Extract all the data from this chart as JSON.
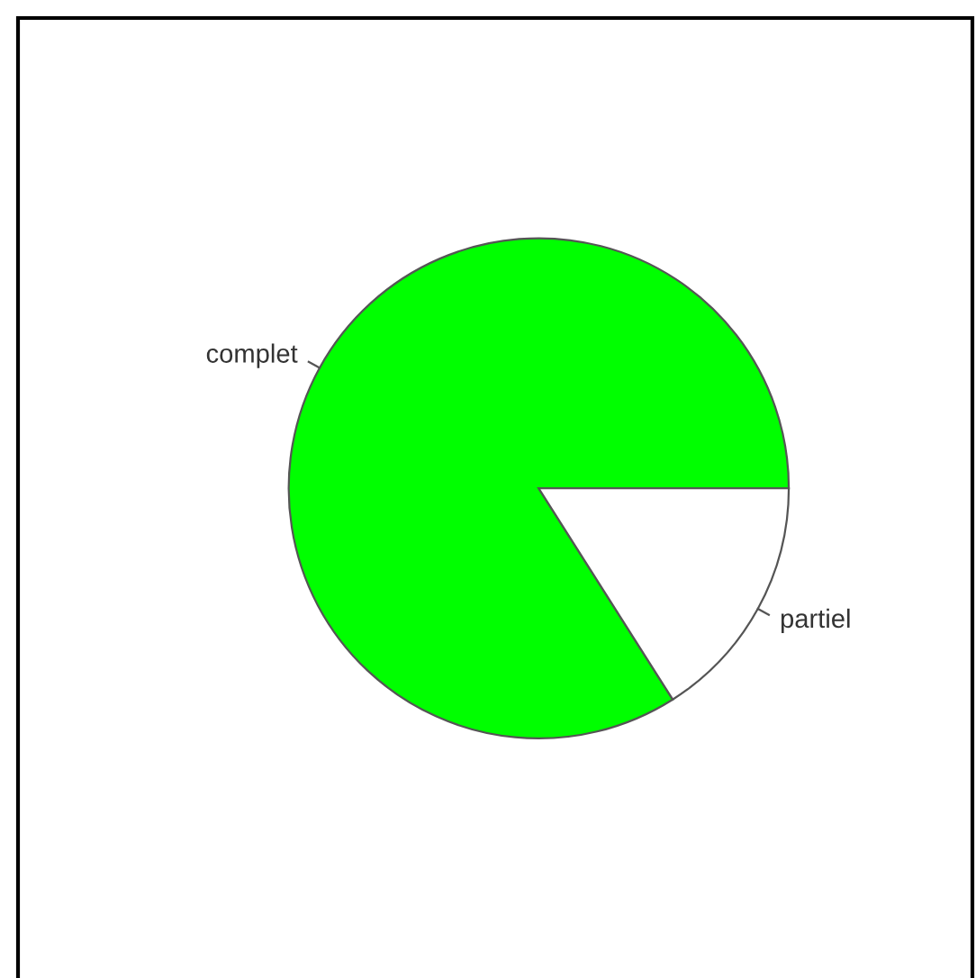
{
  "chart_data": {
    "type": "pie",
    "categories": [
      "complet",
      "partiel"
    ],
    "values": [
      84,
      16
    ],
    "colors": [
      "#00ff00",
      "#ffffff"
    ]
  }
}
